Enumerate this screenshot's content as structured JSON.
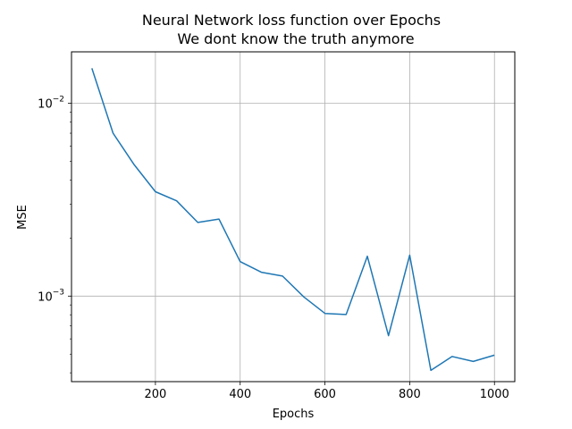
{
  "chart_data": {
    "type": "line",
    "title": "Neural Network loss function over Epochs",
    "subtitle": "We dont know the truth anymore",
    "xlabel": "Epochs",
    "ylabel": "MSE",
    "xlim": [
      2,
      1048
    ],
    "ylim": [
      0.00036,
      0.0185
    ],
    "yscale": "log",
    "grid": true,
    "x_ticks": [
      200,
      400,
      600,
      800,
      1000
    ],
    "x_tick_labels": [
      "200",
      "400",
      "600",
      "800",
      "1000"
    ],
    "y_ticks": [
      0.01,
      0.001
    ],
    "y_tick_labels": [
      {
        "base": "10",
        "exp": "−2"
      },
      {
        "base": "10",
        "exp": "−3"
      }
    ],
    "color": "#1f77b4",
    "x": [
      50,
      100,
      150,
      200,
      250,
      300,
      350,
      400,
      450,
      500,
      550,
      600,
      650,
      700,
      750,
      800,
      850,
      900,
      950,
      1000
    ],
    "values": [
      0.0152,
      0.007,
      0.0048,
      0.00348,
      0.00312,
      0.00241,
      0.00251,
      0.00151,
      0.00133,
      0.00127,
      0.00099,
      0.000813,
      0.000803,
      0.00161,
      0.000623,
      0.00163,
      0.000412,
      0.000486,
      0.000458,
      0.000494
    ]
  }
}
